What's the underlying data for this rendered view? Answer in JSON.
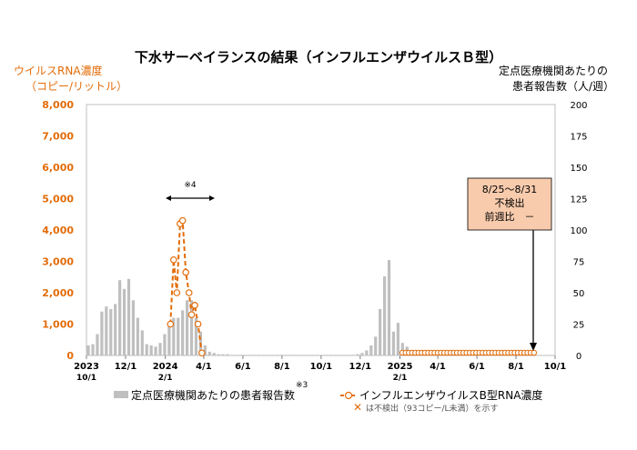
{
  "chart_data": {
    "type": "bar+line",
    "title": "下水サーベイランスの結果（インフルエンザウイルスＢ型）",
    "left_axis": {
      "label_line1": "ウイルスRNA濃度",
      "label_line2": "（コピー/リットル）",
      "ticks": [
        "8,000",
        "7,000",
        "6,000",
        "5,000",
        "4,000",
        "3,000",
        "2,000",
        "1,000",
        "0"
      ],
      "ylim": [
        0,
        8000
      ]
    },
    "right_axis": {
      "label_line1": "定点医療機関あたりの",
      "label_line2": "患者報告数（人/週）",
      "ticks": [
        "200",
        "175",
        "150",
        "125",
        "100",
        "75",
        "50",
        "25",
        "0"
      ],
      "ylim": [
        0,
        200
      ]
    },
    "x_ticks": [
      {
        "label": "2023",
        "sub": "10/1",
        "day": 0
      },
      {
        "label": "12/1",
        "sub": "",
        "day": 61
      },
      {
        "label": "2024",
        "sub": "2/1",
        "day": 123
      },
      {
        "label": "4/1",
        "sub": "",
        "day": 183
      },
      {
        "label": "6/1",
        "sub": "",
        "day": 244
      },
      {
        "label": "8/1",
        "sub": "",
        "day": 305
      },
      {
        "label": "10/1",
        "sub": "",
        "day": 366
      },
      {
        "label": "12/1",
        "sub": "",
        "day": 427
      },
      {
        "label": "2025",
        "sub": "2/1",
        "day": 489
      },
      {
        "label": "4/1",
        "sub": "",
        "day": 548
      },
      {
        "label": "6/1",
        "sub": "",
        "day": 609
      },
      {
        "label": "8/1",
        "sub": "",
        "day": 670
      },
      {
        "label": "10/1",
        "sub": "",
        "day": 731
      }
    ],
    "x_range_days": [
      0,
      731
    ],
    "bar_series": {
      "name": "定点医療機関あたりの患者報告数",
      "note_mark": "※3",
      "color": "#BFBFBF",
      "points": [
        [
          3,
          8
        ],
        [
          10,
          9
        ],
        [
          17,
          17
        ],
        [
          24,
          35
        ],
        [
          31,
          39
        ],
        [
          38,
          37
        ],
        [
          45,
          41
        ],
        [
          52,
          60
        ],
        [
          59,
          53
        ],
        [
          66,
          61
        ],
        [
          73,
          44
        ],
        [
          80,
          30
        ],
        [
          87,
          20
        ],
        [
          94,
          9
        ],
        [
          101,
          8
        ],
        [
          108,
          7
        ],
        [
          115,
          10
        ],
        [
          122,
          17
        ],
        [
          129,
          25
        ],
        [
          136,
          30
        ],
        [
          143,
          30
        ],
        [
          150,
          36
        ],
        [
          157,
          44
        ],
        [
          164,
          44
        ],
        [
          171,
          30
        ],
        [
          178,
          19
        ],
        [
          185,
          8
        ],
        [
          192,
          3
        ],
        [
          199,
          2
        ],
        [
          206,
          1
        ],
        [
          213,
          1
        ],
        [
          220,
          1
        ],
        [
          227,
          0.5
        ],
        [
          234,
          0.5
        ],
        [
          241,
          0.5
        ],
        [
          248,
          0.5
        ],
        [
          255,
          0.5
        ],
        [
          262,
          0.5
        ],
        [
          269,
          0.5
        ],
        [
          276,
          0.5
        ],
        [
          283,
          0.5
        ],
        [
          290,
          0.5
        ],
        [
          297,
          0.5
        ],
        [
          304,
          0.5
        ],
        [
          311,
          0.5
        ],
        [
          318,
          0.5
        ],
        [
          325,
          0.5
        ],
        [
          332,
          0.5
        ],
        [
          339,
          0.5
        ],
        [
          346,
          0.5
        ],
        [
          353,
          0.5
        ],
        [
          360,
          0.5
        ],
        [
          367,
          0.5
        ],
        [
          374,
          0.5
        ],
        [
          381,
          0.5
        ],
        [
          388,
          0.5
        ],
        [
          395,
          0.5
        ],
        [
          402,
          0.5
        ],
        [
          409,
          0.5
        ],
        [
          416,
          0.5
        ],
        [
          423,
          1
        ],
        [
          430,
          2
        ],
        [
          437,
          4
        ],
        [
          444,
          8
        ],
        [
          451,
          15
        ],
        [
          458,
          37
        ],
        [
          465,
          63
        ],
        [
          472,
          76
        ],
        [
          479,
          19
        ],
        [
          486,
          26
        ],
        [
          493,
          10
        ],
        [
          500,
          7
        ],
        [
          507,
          3
        ],
        [
          514,
          2
        ],
        [
          521,
          1
        ],
        [
          528,
          1
        ],
        [
          535,
          1
        ],
        [
          542,
          1
        ],
        [
          549,
          1
        ],
        [
          556,
          0.5
        ],
        [
          563,
          0.5
        ],
        [
          570,
          0.5
        ],
        [
          577,
          0.5
        ],
        [
          584,
          0.5
        ],
        [
          591,
          0.5
        ],
        [
          598,
          0.5
        ],
        [
          605,
          0.5
        ],
        [
          612,
          0.5
        ],
        [
          619,
          0.5
        ],
        [
          626,
          0.5
        ],
        [
          633,
          0.5
        ],
        [
          640,
          0.5
        ],
        [
          647,
          0.5
        ],
        [
          654,
          0.5
        ],
        [
          661,
          0.5
        ],
        [
          668,
          0.5
        ],
        [
          675,
          0.5
        ],
        [
          682,
          0.5
        ],
        [
          689,
          0.5
        ],
        [
          696,
          0.5
        ]
      ]
    },
    "line_series": {
      "name": "インフルエンザウイルスB型RNA濃度",
      "color": "#E36C09",
      "points": [
        [
          131,
          1000
        ],
        [
          136,
          3050
        ],
        [
          141,
          2000
        ],
        [
          146,
          4200
        ],
        [
          150,
          4300
        ],
        [
          155,
          2650
        ],
        [
          160,
          2000
        ],
        [
          164,
          1300
        ],
        [
          169,
          1600
        ],
        [
          174,
          1000
        ],
        [
          180,
          80
        ]
      ],
      "not_detected_days": [
        493,
        498,
        503,
        508,
        513,
        518,
        523,
        528,
        533,
        538,
        543,
        548,
        553,
        558,
        563,
        568,
        573,
        578,
        583,
        588,
        593,
        598,
        603,
        608,
        613,
        618,
        623,
        628,
        633,
        638,
        643,
        648,
        653,
        658,
        663,
        668,
        673,
        678,
        683,
        688,
        693,
        698
      ]
    },
    "legend_note": "は不検出（93コピー/L未満）を示す",
    "annotation_4": "※4",
    "callout": {
      "line1": "8/25～8/31",
      "line2": "不検出",
      "line3": "前週比　－"
    }
  }
}
